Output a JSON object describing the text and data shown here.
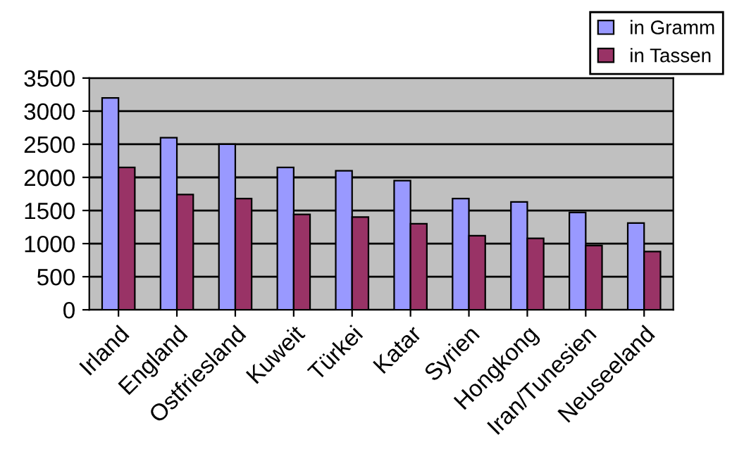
{
  "chart_data": {
    "type": "bar",
    "categories": [
      "Irland",
      "England",
      "Ostfriesland",
      "Kuweit",
      "Türkei",
      "Katar",
      "Syrien",
      "Hongkong",
      "Iran/Tunesien",
      "Neuseeland"
    ],
    "series": [
      {
        "name": "in Gramm",
        "color": "#9999ff",
        "values": [
          3200,
          2600,
          2500,
          2150,
          2100,
          1950,
          1680,
          1630,
          1470,
          1310
        ]
      },
      {
        "name": "in Tassen",
        "color": "#993366",
        "values": [
          2150,
          1740,
          1680,
          1440,
          1400,
          1300,
          1120,
          1080,
          970,
          880
        ]
      }
    ],
    "ylim": [
      0,
      3500
    ],
    "yticks": [
      0,
      500,
      1000,
      1500,
      2000,
      2500,
      3000,
      3500
    ],
    "grid": "y",
    "legend": "top right"
  }
}
